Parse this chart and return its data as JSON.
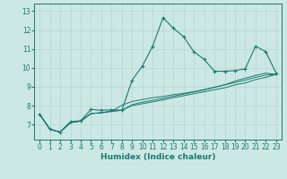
{
  "title": "",
  "xlabel": "Humidex (Indice chaleur)",
  "bg_color": "#cce8e4",
  "grid_color": "#b8d8d4",
  "line_color": "#1a7a6e",
  "xlim": [
    -0.5,
    23.5
  ],
  "ylim": [
    6.2,
    13.4
  ],
  "xticks": [
    0,
    1,
    2,
    3,
    4,
    5,
    6,
    7,
    8,
    9,
    10,
    11,
    12,
    13,
    14,
    15,
    16,
    17,
    18,
    19,
    20,
    21,
    22,
    23
  ],
  "yticks": [
    7,
    8,
    9,
    10,
    11,
    12,
    13
  ],
  "series": [
    [
      7.55,
      6.75,
      6.6,
      7.15,
      7.2,
      7.8,
      7.75,
      7.78,
      7.75,
      9.35,
      10.1,
      11.15,
      12.65,
      12.1,
      11.65,
      10.85,
      10.45,
      9.82,
      9.82,
      9.85,
      9.95,
      11.15,
      10.85,
      9.72
    ],
    [
      7.55,
      6.75,
      6.6,
      7.1,
      7.18,
      7.58,
      7.62,
      7.7,
      7.75,
      8.0,
      8.1,
      8.2,
      8.3,
      8.42,
      8.52,
      8.63,
      8.73,
      8.84,
      8.94,
      9.1,
      9.2,
      9.38,
      9.5,
      9.65
    ],
    [
      7.55,
      6.75,
      6.6,
      7.1,
      7.18,
      7.58,
      7.62,
      7.7,
      7.75,
      8.05,
      8.18,
      8.28,
      8.38,
      8.5,
      8.6,
      8.72,
      8.83,
      8.97,
      9.1,
      9.3,
      9.45,
      9.6,
      9.72,
      9.65
    ],
    [
      7.55,
      6.75,
      6.6,
      7.1,
      7.18,
      7.58,
      7.62,
      7.7,
      8.02,
      8.22,
      8.32,
      8.42,
      8.48,
      8.58,
      8.65,
      8.74,
      8.85,
      8.97,
      9.1,
      9.22,
      9.35,
      9.5,
      9.62,
      9.65
    ]
  ]
}
